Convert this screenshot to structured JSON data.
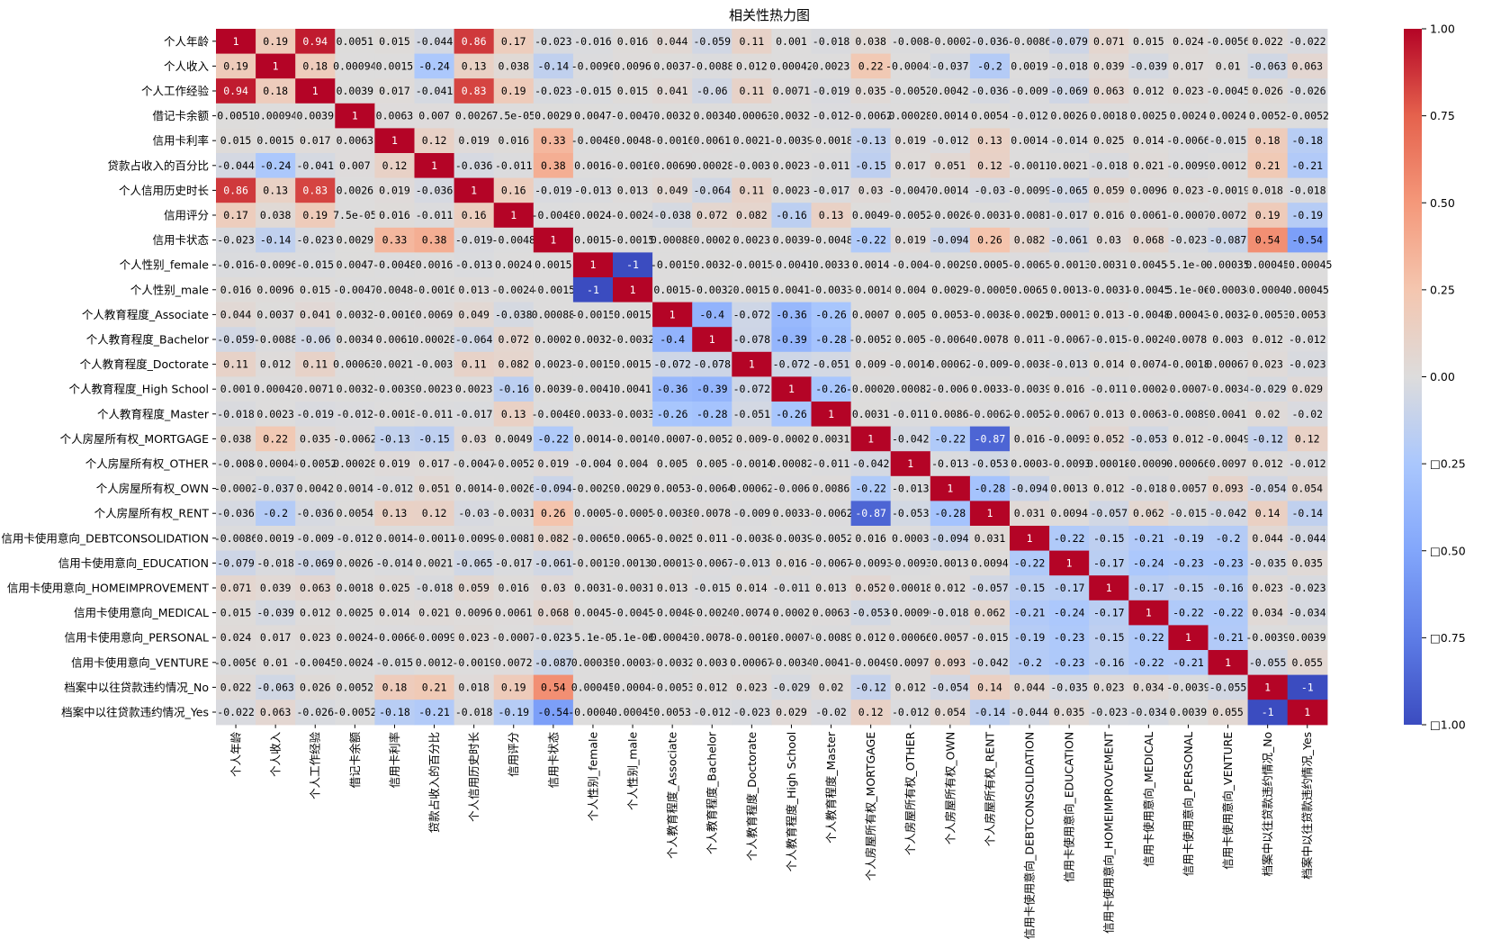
{
  "chart_data": {
    "type": "heatmap",
    "title": "相关性热力图",
    "labels": [
      "个人年龄",
      "个人收入",
      "个人工作经验",
      "借记卡余额",
      "信用卡利率",
      "贷款占收入的百分比",
      "个人信用历史时长",
      "信用评分",
      "信用卡状态",
      "个人性别_female",
      "个人性别_male",
      "个人教育程度_Associate",
      "个人教育程度_Bachelor",
      "个人教育程度_Doctorate",
      "个人教育程度_High School",
      "个人教育程度_Master",
      "个人房屋所有权_MORTGAGE",
      "个人房屋所有权_OTHER",
      "个人房屋所有权_OWN",
      "个人房屋所有权_RENT",
      "信用卡使用意向_DEBTCONSOLIDATION",
      "信用卡使用意向_EDUCATION",
      "信用卡使用意向_HOMEIMPROVEMENT",
      "信用卡使用意向_MEDICAL",
      "信用卡使用意向_PERSONAL",
      "信用卡使用意向_VENTURE",
      "档案中以往贷款违约情况_No",
      "档案中以往贷款违约情况_Yes"
    ],
    "matrix": [
      [
        "1",
        "0.19",
        "0.94",
        "0.0051",
        "0.015",
        "-0.044",
        "0.86",
        "0.17",
        "-0.023",
        "-0.016",
        "0.016",
        "0.044",
        "-0.059",
        "0.11",
        "0.001",
        "-0.018",
        "0.038",
        "-0.008",
        "-0.0002",
        "-0.036",
        "-0.0086",
        "-0.079",
        "0.071",
        "0.015",
        "0.024",
        "-0.0056",
        "0.022",
        "-0.022"
      ],
      [
        "0.19",
        "1",
        "0.18",
        "0.00094",
        "0.0015",
        "-0.24",
        "0.13",
        "0.038",
        "-0.14",
        "-0.0096",
        "0.0096",
        "0.0037",
        "-0.0088",
        "0.012",
        "0.00042",
        "0.0023",
        "0.22",
        "-0.00045",
        "-0.037",
        "-0.2",
        "0.0019",
        "-0.018",
        "0.039",
        "-0.039",
        "0.017",
        "0.01",
        "-0.063",
        "0.063"
      ],
      [
        "0.94",
        "0.18",
        "1",
        "0.0039",
        "0.017",
        "-0.041",
        "0.83",
        "0.19",
        "-0.023",
        "-0.015",
        "0.015",
        "0.041",
        "-0.06",
        "0.11",
        "0.0071",
        "-0.019",
        "0.035",
        "-0.0052",
        "0.0042",
        "-0.036",
        "-0.009",
        "-0.069",
        "0.063",
        "0.012",
        "0.023",
        "-0.0045",
        "0.026",
        "-0.026"
      ],
      [
        "0.0051",
        "0.00094",
        "0.0039",
        "1",
        "0.0063",
        "0.007",
        "0.0026",
        "7.5e-05",
        "0.0029",
        "0.0047",
        "-0.0047",
        "0.0032",
        "0.0034",
        "0.00063",
        "0.0032",
        "-0.012",
        "-0.0062",
        "0.00028",
        "0.0014",
        "0.0054",
        "-0.012",
        "0.0026",
        "0.0018",
        "0.0025",
        "0.0024",
        "0.0024",
        "0.0052",
        "-0.0052"
      ],
      [
        "0.015",
        "0.0015",
        "0.017",
        "0.0063",
        "1",
        "0.12",
        "0.019",
        "0.016",
        "0.33",
        "-0.0048",
        "0.0048",
        "-0.0016",
        "0.0061",
        "0.0021",
        "-0.0039",
        "-0.0018",
        "-0.13",
        "0.019",
        "-0.012",
        "0.13",
        "0.0014",
        "-0.014",
        "0.025",
        "0.014",
        "-0.0066",
        "-0.015",
        "0.18",
        "-0.18"
      ],
      [
        "-0.044",
        "-0.24",
        "-0.041",
        "0.007",
        "0.12",
        "1",
        "-0.036",
        "-0.011",
        "0.38",
        "0.0016",
        "-0.0016",
        "0.0069",
        "0.00028",
        "-0.003",
        "0.0023",
        "-0.011",
        "-0.15",
        "0.017",
        "0.051",
        "0.12",
        "-0.0011",
        "0.0021",
        "-0.018",
        "0.021",
        "-0.0099",
        "0.0012",
        "0.21",
        "-0.21"
      ],
      [
        "0.86",
        "0.13",
        "0.83",
        "0.0026",
        "0.019",
        "-0.036",
        "1",
        "0.16",
        "-0.019",
        "-0.013",
        "0.013",
        "0.049",
        "-0.064",
        "0.11",
        "0.0023",
        "-0.017",
        "0.03",
        "-0.0047",
        "0.0014",
        "-0.03",
        "-0.0099",
        "-0.065",
        "0.059",
        "0.0096",
        "0.023",
        "-0.0019",
        "0.018",
        "-0.018"
      ],
      [
        "0.17",
        "0.038",
        "0.19",
        "7.5e-05",
        "0.016",
        "-0.011",
        "0.16",
        "1",
        "-0.0048",
        "0.0024",
        "-0.0024",
        "-0.038",
        "0.072",
        "0.082",
        "-0.16",
        "0.13",
        "0.0049",
        "-0.0052",
        "-0.0026",
        "-0.0031",
        "-0.0081",
        "-0.017",
        "0.016",
        "0.0061",
        "-0.0007",
        "0.0072",
        "0.19",
        "-0.19"
      ],
      [
        "-0.023",
        "-0.14",
        "-0.023",
        "0.0029",
        "0.33",
        "0.38",
        "-0.019",
        "-0.0048",
        "1",
        "0.0015",
        "-0.0015",
        "0.00088",
        "0.0002",
        "0.0023",
        "0.0039",
        "-0.0048",
        "-0.22",
        "0.019",
        "-0.094",
        "0.26",
        "0.082",
        "-0.061",
        "0.03",
        "0.068",
        "-0.023",
        "-0.087",
        "0.54",
        "-0.54"
      ],
      [
        "-0.016",
        "-0.0096",
        "-0.015",
        "0.0047",
        "-0.0048",
        "0.0016",
        "-0.013",
        "0.0024",
        "0.0015",
        "1",
        "-1",
        "-0.0015",
        "0.0032",
        "-0.0015",
        "-0.0041",
        "0.0033",
        "0.0014",
        "-0.004",
        "-0.0029",
        "0.0005",
        "-0.0065",
        "-0.0013",
        "0.0031",
        "0.0045",
        "-5.1e-06",
        "0.00035",
        "0.00045",
        "-0.00045"
      ],
      [
        "0.016",
        "0.0096",
        "0.015",
        "-0.0047",
        "0.0048",
        "-0.0016",
        "0.013",
        "-0.0024",
        "-0.0015",
        "-1",
        "1",
        "0.0015",
        "-0.0032",
        "0.0015",
        "0.0041",
        "-0.0033",
        "-0.0014",
        "0.004",
        "0.0029",
        "-0.0005",
        "0.0065",
        "0.0013",
        "-0.0031",
        "-0.0045",
        "5.1e-06",
        "-0.00035",
        "-0.00045",
        "0.00045"
      ],
      [
        "0.044",
        "0.0037",
        "0.041",
        "0.0032",
        "-0.0016",
        "0.0069",
        "0.049",
        "-0.038",
        "0.00088",
        "-0.0015",
        "0.0015",
        "1",
        "-0.4",
        "-0.072",
        "-0.36",
        "-0.26",
        "0.0007",
        "0.005",
        "0.0053",
        "-0.0038",
        "-0.0025",
        "0.00013",
        "0.013",
        "-0.0048",
        "0.00043",
        "-0.0032",
        "-0.0053",
        "0.0053"
      ],
      [
        "-0.059",
        "-0.0088",
        "-0.06",
        "0.0034",
        "0.0061",
        "0.00028",
        "-0.064",
        "0.072",
        "0.0002",
        "0.0032",
        "-0.0032",
        "-0.4",
        "1",
        "-0.078",
        "-0.39",
        "-0.28",
        "-0.0052",
        "0.005",
        "-0.0064",
        "0.0078",
        "0.011",
        "-0.0067",
        "-0.015",
        "-0.0024",
        "0.0078",
        "0.003",
        "0.012",
        "-0.012"
      ],
      [
        "0.11",
        "0.012",
        "0.11",
        "0.00063",
        "0.0021",
        "-0.003",
        "0.11",
        "0.082",
        "0.0023",
        "-0.0015",
        "0.0015",
        "-0.072",
        "-0.078",
        "1",
        "-0.072",
        "-0.051",
        "0.009",
        "-0.0014",
        "0.00062",
        "-0.009",
        "-0.0038",
        "-0.013",
        "0.014",
        "0.0074",
        "-0.0018",
        "0.00067",
        "0.023",
        "-0.023"
      ],
      [
        "0.001",
        "0.00042",
        "0.0071",
        "0.0032",
        "-0.0039",
        "0.0023",
        "0.0023",
        "-0.16",
        "0.0039",
        "-0.0041",
        "0.0041",
        "-0.36",
        "-0.39",
        "-0.072",
        "1",
        "-0.26",
        "-0.00021",
        "0.00082",
        "-0.006",
        "0.0033",
        "-0.0039",
        "0.016",
        "-0.011",
        "0.0002",
        "-0.00079",
        "-0.0034",
        "-0.029",
        "0.029"
      ],
      [
        "-0.018",
        "0.0023",
        "-0.019",
        "-0.012",
        "-0.0018",
        "-0.011",
        "-0.017",
        "0.13",
        "-0.0048",
        "0.0033",
        "-0.0033",
        "-0.26",
        "-0.28",
        "-0.051",
        "-0.26",
        "1",
        "0.0031",
        "-0.011",
        "0.0086",
        "-0.0062",
        "-0.0052",
        "-0.0067",
        "0.013",
        "0.0063",
        "-0.0089",
        "0.0041",
        "0.02",
        "-0.02"
      ],
      [
        "0.038",
        "0.22",
        "0.035",
        "-0.0062",
        "-0.13",
        "-0.15",
        "0.03",
        "0.0049",
        "-0.22",
        "0.0014",
        "-0.0014",
        "0.0007",
        "-0.0052",
        "0.009",
        "-0.00021",
        "0.0031",
        "1",
        "-0.042",
        "-0.22",
        "-0.87",
        "0.016",
        "-0.0093",
        "0.052",
        "-0.053",
        "0.012",
        "-0.0049",
        "-0.12",
        "0.12"
      ],
      [
        "-0.008",
        "-0.00045",
        "-0.0052",
        "0.00028",
        "0.019",
        "0.017",
        "-0.0047",
        "-0.0052",
        "0.019",
        "-0.004",
        "0.004",
        "0.005",
        "0.005",
        "-0.0014",
        "0.00082",
        "-0.011",
        "-0.042",
        "1",
        "-0.013",
        "-0.053",
        "0.0003",
        "-0.0093",
        "0.00018",
        "-0.00096",
        "0.00066",
        "0.0097",
        "0.012",
        "-0.012"
      ],
      [
        "-0.0002",
        "-0.037",
        "0.0042",
        "0.0014",
        "-0.012",
        "0.051",
        "0.0014",
        "-0.0026",
        "-0.094",
        "-0.0029",
        "0.0029",
        "0.0053",
        "-0.0064",
        "0.00062",
        "-0.006",
        "0.0086",
        "-0.22",
        "-0.013",
        "1",
        "-0.28",
        "-0.094",
        "0.0013",
        "0.012",
        "-0.018",
        "0.0057",
        "0.093",
        "-0.054",
        "0.054"
      ],
      [
        "-0.036",
        "-0.2",
        "-0.036",
        "0.0054",
        "0.13",
        "0.12",
        "-0.03",
        "-0.0031",
        "0.26",
        "0.0005",
        "-0.0005",
        "-0.0038",
        "0.0078",
        "-0.009",
        "0.0033",
        "-0.0062",
        "-0.87",
        "-0.053",
        "-0.28",
        "1",
        "0.031",
        "0.0094",
        "-0.057",
        "0.062",
        "-0.015",
        "-0.042",
        "0.14",
        "-0.14"
      ],
      [
        "-0.0086",
        "0.0019",
        "-0.009",
        "-0.012",
        "0.0014",
        "-0.0011",
        "-0.0099",
        "-0.0081",
        "0.082",
        "-0.0065",
        "0.0065",
        "-0.0025",
        "0.011",
        "-0.0038",
        "-0.0039",
        "-0.0052",
        "0.016",
        "0.0003",
        "-0.094",
        "0.031",
        "1",
        "-0.22",
        "-0.15",
        "-0.21",
        "-0.19",
        "-0.2",
        "0.044",
        "-0.044"
      ],
      [
        "-0.079",
        "-0.018",
        "-0.069",
        "0.0026",
        "-0.014",
        "0.0021",
        "-0.065",
        "-0.017",
        "-0.061",
        "-0.0013",
        "0.0013",
        "0.00013",
        "-0.0067",
        "-0.013",
        "0.016",
        "-0.0067",
        "-0.0093",
        "-0.0093",
        "0.0013",
        "0.0094",
        "-0.22",
        "1",
        "-0.17",
        "-0.24",
        "-0.23",
        "-0.23",
        "-0.035",
        "0.035"
      ],
      [
        "0.071",
        "0.039",
        "0.063",
        "0.0018",
        "0.025",
        "-0.018",
        "0.059",
        "0.016",
        "0.03",
        "0.0031",
        "-0.0031",
        "0.013",
        "-0.015",
        "0.014",
        "-0.011",
        "0.013",
        "0.052",
        "0.00018",
        "0.012",
        "-0.057",
        "-0.15",
        "-0.17",
        "1",
        "-0.17",
        "-0.15",
        "-0.16",
        "0.023",
        "-0.023"
      ],
      [
        "0.015",
        "-0.039",
        "0.012",
        "0.0025",
        "0.014",
        "0.021",
        "0.0096",
        "0.0061",
        "0.068",
        "0.0045",
        "-0.0045",
        "-0.0048",
        "-0.0024",
        "0.0074",
        "0.0002",
        "0.0063",
        "-0.053",
        "-0.00096",
        "-0.018",
        "0.062",
        "-0.21",
        "-0.24",
        "-0.17",
        "1",
        "-0.22",
        "-0.22",
        "0.034",
        "-0.034"
      ],
      [
        "0.024",
        "0.017",
        "0.023",
        "0.0024",
        "-0.0066",
        "-0.0099",
        "0.023",
        "-0.0007",
        "-0.023",
        "-5.1e-06",
        "5.1e-06",
        "0.00043",
        "0.0078",
        "-0.0018",
        "-0.00079",
        "-0.0089",
        "0.012",
        "0.00066",
        "0.0057",
        "-0.015",
        "-0.19",
        "-0.23",
        "-0.15",
        "-0.22",
        "1",
        "-0.21",
        "-0.0039",
        "0.0039"
      ],
      [
        "-0.0056",
        "0.01",
        "-0.0045",
        "0.0024",
        "-0.015",
        "0.0012",
        "-0.0019",
        "0.0072",
        "-0.087",
        "0.00035",
        "-0.00035",
        "-0.0032",
        "0.003",
        "0.00067",
        "-0.0034",
        "0.0041",
        "-0.0049",
        "0.0097",
        "0.093",
        "-0.042",
        "-0.2",
        "-0.23",
        "-0.16",
        "-0.22",
        "-0.21",
        "1",
        "-0.055",
        "0.055"
      ],
      [
        "0.022",
        "-0.063",
        "0.026",
        "0.0052",
        "0.18",
        "0.21",
        "0.018",
        "0.19",
        "0.54",
        "0.00045",
        "-0.00045",
        "-0.0053",
        "0.012",
        "0.023",
        "-0.029",
        "0.02",
        "-0.12",
        "0.012",
        "-0.054",
        "0.14",
        "0.044",
        "-0.035",
        "0.023",
        "0.034",
        "-0.0039",
        "-0.055",
        "1",
        "-1"
      ],
      [
        "-0.022",
        "0.063",
        "-0.026",
        "-0.0052",
        "-0.18",
        "-0.21",
        "-0.018",
        "-0.19",
        "-0.54",
        "-0.00045",
        "0.00045",
        "0.0053",
        "-0.012",
        "-0.023",
        "0.029",
        "-0.02",
        "0.12",
        "-0.012",
        "0.054",
        "-0.14",
        "-0.044",
        "0.035",
        "-0.023",
        "-0.034",
        "0.0039",
        "0.055",
        "-1",
        "1"
      ]
    ],
    "colorbar": {
      "ticks": [
        1.0,
        0.75,
        0.5,
        0.25,
        0.0,
        -0.25,
        -0.5,
        -0.75,
        -1.0
      ],
      "tick_labels": [
        "1.00",
        "0.75",
        "0.50",
        "0.25",
        "0.00",
        "□0.25",
        "□0.50",
        "□0.75",
        "□1.00"
      ]
    },
    "vmin": -1,
    "vmax": 1,
    "colormap": "coolwarm"
  }
}
